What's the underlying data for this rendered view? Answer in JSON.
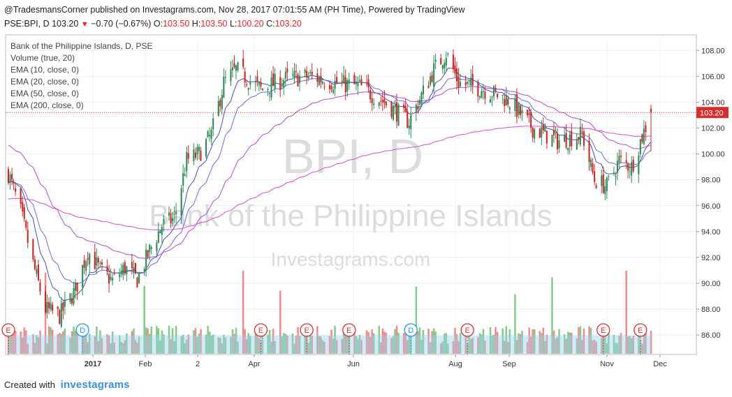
{
  "header": {
    "publish_line": "@TradesmansCorner published on Investagrams.com, Nov 28, 2017 07:01:55 AM (PH Time), Powered by TradingView",
    "symbol": "PSE:BPI, D",
    "last": "103.20",
    "change": "−0.70 (−0.67%)",
    "o_label": "O:",
    "o_val": "103.50",
    "h_label": "H:",
    "h_val": "103.50",
    "l_label": "L:",
    "l_val": "100.20",
    "c_label": "C:",
    "c_val": "103.20"
  },
  "legend": [
    "Bank of the Philippine Islands, D, PSE",
    "Volume (true, 20)",
    "EMA (10, close, 0)",
    "EMA (20, close, 0)",
    "EMA (50, close, 0)",
    "EMA (200, close, 0)"
  ],
  "watermark": {
    "symbol": "BPI, D",
    "name": "Bank of the Philippine Islands",
    "site": "Investagrams.com"
  },
  "footer": {
    "created_with": "Created with",
    "brand": "investagrams"
  },
  "colors": {
    "up": "#2e8b57",
    "down": "#c62828",
    "vol_up": "#86c98a",
    "vol_down": "#f08a8a",
    "ema10": "#3f51b5",
    "ema20": "#6a6ae0",
    "ema50": "#b04bd0",
    "ema200": "#d64bd6",
    "price_tag": "#d32f2f",
    "event": "#d32f2f",
    "dividend": "#2196f3"
  },
  "chart_data": {
    "type": "candlestick",
    "y_axis": {
      "range": [
        84.5,
        109.2
      ],
      "ticks": [
        "86.00",
        "88.00",
        "90.00",
        "92.00",
        "94.00",
        "96.00",
        "98.00",
        "100.00",
        "102.00",
        "104.00",
        "106.00",
        "108.00"
      ]
    },
    "x_axis": {
      "ticks": [
        "2017",
        "Feb",
        "2",
        "Apr",
        "Jun",
        "Aug",
        "Sep",
        "Nov",
        "Dec"
      ]
    },
    "last_price": {
      "value": 103.2,
      "label": "103.20"
    },
    "candles_approx": [
      {
        "date": "2016-11-28",
        "close": 98.5
      },
      {
        "date": "2016-12-05",
        "close": 95.5
      },
      {
        "date": "2016-12-12",
        "close": 91.5
      },
      {
        "date": "2016-12-19",
        "close": 88.0
      },
      {
        "date": "2016-12-27",
        "close": 87.5
      },
      {
        "date": "2017-01-05",
        "close": 89.5
      },
      {
        "date": "2017-01-12",
        "close": 92.5
      },
      {
        "date": "2017-01-19",
        "close": 91.0
      },
      {
        "date": "2017-01-26",
        "close": 90.2
      },
      {
        "date": "2017-02-02",
        "close": 91.2
      },
      {
        "date": "2017-02-09",
        "close": 90.3
      },
      {
        "date": "2017-02-16",
        "close": 92.5
      },
      {
        "date": "2017-02-23",
        "close": 94.5
      },
      {
        "date": "2017-03-02",
        "close": 95.0
      },
      {
        "date": "2017-03-09",
        "close": 99.5
      },
      {
        "date": "2017-03-16",
        "close": 100.0
      },
      {
        "date": "2017-03-23",
        "close": 101.5
      },
      {
        "date": "2017-03-30",
        "close": 105.5
      },
      {
        "date": "2017-04-06",
        "close": 106.5
      },
      {
        "date": "2017-04-20",
        "close": 105.0
      },
      {
        "date": "2017-05-04",
        "close": 105.8
      },
      {
        "date": "2017-05-18",
        "close": 106.0
      },
      {
        "date": "2017-06-01",
        "close": 105.5
      },
      {
        "date": "2017-06-15",
        "close": 105.2
      },
      {
        "date": "2017-06-29",
        "close": 104.0
      },
      {
        "date": "2017-07-13",
        "close": 102.5
      },
      {
        "date": "2017-07-27",
        "close": 106.5
      },
      {
        "date": "2017-08-03",
        "close": 107.8
      },
      {
        "date": "2017-08-10",
        "close": 105.5
      },
      {
        "date": "2017-08-24",
        "close": 105.0
      },
      {
        "date": "2017-09-07",
        "close": 104.2
      },
      {
        "date": "2017-09-21",
        "close": 102.0
      },
      {
        "date": "2017-10-05",
        "close": 101.0
      },
      {
        "date": "2017-10-19",
        "close": 101.5
      },
      {
        "date": "2017-10-26",
        "close": 98.0
      },
      {
        "date": "2017-11-02",
        "close": 97.5
      },
      {
        "date": "2017-11-09",
        "close": 99.5
      },
      {
        "date": "2017-11-16",
        "close": 99.0
      },
      {
        "date": "2017-11-21",
        "close": 101.0
      },
      {
        "date": "2017-11-27",
        "close": 103.2
      }
    ],
    "event_markers": [
      {
        "type": "E",
        "date": "2016-11-28"
      },
      {
        "type": "D",
        "date": "2017-01-09"
      },
      {
        "type": "E",
        "date": "2017-04-20"
      },
      {
        "type": "E",
        "date": "2017-05-16"
      },
      {
        "type": "E",
        "date": "2017-06-09"
      },
      {
        "type": "D",
        "date": "2017-07-14"
      },
      {
        "type": "E",
        "date": "2017-08-15"
      },
      {
        "type": "E",
        "date": "2017-10-31"
      },
      {
        "type": "E",
        "date": "2017-11-21"
      }
    ]
  }
}
